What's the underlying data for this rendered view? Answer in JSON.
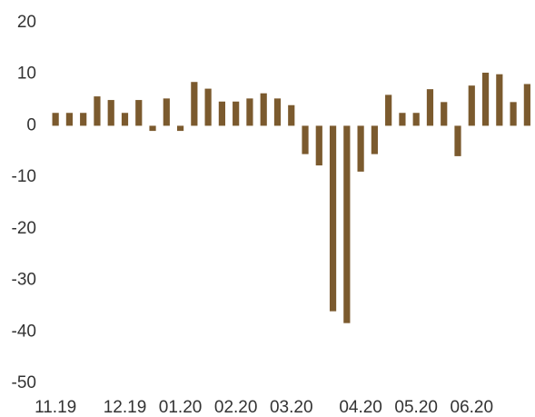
{
  "chart_data": {
    "type": "bar",
    "categories": [
      "11.19",
      null,
      null,
      null,
      null,
      "12.19",
      null,
      null,
      null,
      "01.20",
      null,
      null,
      null,
      "02.20",
      null,
      null,
      null,
      "03.20",
      null,
      null,
      null,
      null,
      "04.20",
      null,
      null,
      null,
      "05.20",
      null,
      null,
      null,
      "06.20",
      null,
      null,
      null,
      null
    ],
    "values": [
      2.5,
      2.5,
      2.5,
      5.7,
      5,
      2.5,
      5,
      -1,
      5.3,
      -1,
      8.5,
      7.2,
      4.7,
      4.7,
      5.3,
      6.3,
      5.3,
      4,
      -5.5,
      -7.7,
      -36,
      -38.3,
      -8.9,
      -5.5,
      6,
      2.5,
      2.5,
      7.1,
      4.6,
      -5.9,
      7.8,
      10.3,
      10,
      4.6,
      8.1
    ],
    "color": "#7b5a2e",
    "ylim": [
      -50,
      20
    ],
    "yticks": [
      -50,
      -40,
      -30,
      -20,
      -10,
      0,
      10,
      20
    ],
    "grid": false
  }
}
